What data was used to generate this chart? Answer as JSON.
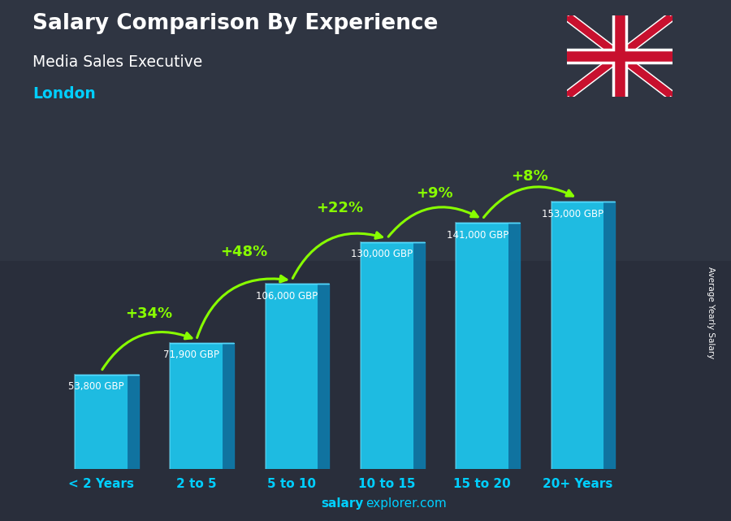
{
  "title": "Salary Comparison By Experience",
  "subtitle": "Media Sales Executive",
  "location": "London",
  "categories": [
    "< 2 Years",
    "2 to 5",
    "5 to 10",
    "10 to 15",
    "15 to 20",
    "20+ Years"
  ],
  "values": [
    53800,
    71900,
    106000,
    130000,
    141000,
    153000
  ],
  "labels": [
    "53,800 GBP",
    "71,900 GBP",
    "106,000 GBP",
    "130,000 GBP",
    "141,000 GBP",
    "153,000 GBP"
  ],
  "pct_changes": [
    "+34%",
    "+48%",
    "+22%",
    "+9%",
    "+8%"
  ],
  "bar_color_main": "#1EC8F0",
  "bar_color_side": "#0E7AAA",
  "bar_color_top": "#5ADCFF",
  "title_color": "#FFFFFF",
  "subtitle_color": "#FFFFFF",
  "location_color": "#00CFFF",
  "label_color": "#FFFFFF",
  "pct_color": "#88FF00",
  "arrow_color": "#88FF00",
  "xlabel_color": "#00CFFF",
  "watermark_bold": "salary",
  "watermark_normal": "explorer.com",
  "ylabel_text": "Average Yearly Salary",
  "bar_width": 0.55,
  "bar_depth": 0.12,
  "ylim": [
    0,
    185000
  ],
  "n_bars": 6
}
